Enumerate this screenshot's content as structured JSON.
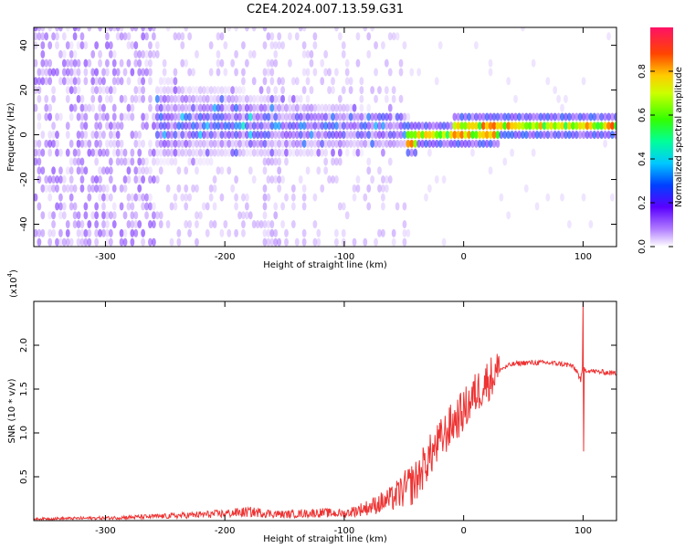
{
  "chart_data": [
    {
      "type": "heatmap",
      "title": "C2E4.2024.007.13.59.G31",
      "xlabel": "Height of straight line (km)",
      "ylabel": "Frequency (Hz)",
      "xlim": [
        -360,
        128
      ],
      "ylim": [
        -50,
        48
      ],
      "xticks": [
        -300,
        -200,
        -100,
        0,
        100
      ],
      "yticks": [
        -40,
        -20,
        0,
        20,
        40
      ],
      "colorbar": {
        "label": "Normalized spectral amplitude",
        "range": [
          0.0,
          1.0
        ],
        "ticks": [
          "0.0",
          "0.2",
          "0.4",
          "0.6",
          "0.8"
        ],
        "tick_values": [
          0.0,
          0.2,
          0.4,
          0.6,
          0.8
        ]
      },
      "ridge": {
        "description": "bright narrow band near 0 Hz for heights above about -50 km",
        "x": [
          -50,
          -30,
          -10,
          10,
          30,
          50,
          70,
          90,
          110,
          128
        ],
        "y": [
          -4,
          -2,
          -1,
          0,
          1,
          1,
          2,
          3,
          2,
          2
        ]
      }
    },
    {
      "type": "line",
      "title": "",
      "xlabel": "Height of straight line (km)",
      "ylabel": "SNR (10 * v/v)",
      "y_multiplier": "(x10",
      "y_multiplier_exp": "4",
      "y_multiplier_close": ")",
      "xlim": [
        -360,
        128
      ],
      "ylim": [
        0.0,
        2.5
      ],
      "xticks": [
        -300,
        -200,
        -100,
        0,
        100
      ],
      "yticks": [
        "0.5",
        "1.0",
        "1.5",
        "2.0"
      ],
      "ytick_values": [
        0.5,
        1.0,
        1.5,
        2.0
      ],
      "series": [
        {
          "name": "SNR",
          "color": "#ee3333",
          "x": [
            -360,
            -300,
            -250,
            -200,
            -180,
            -150,
            -120,
            -100,
            -80,
            -60,
            -50,
            -40,
            -30,
            -20,
            -10,
            0,
            10,
            20,
            30,
            40,
            50,
            60,
            70,
            80,
            90,
            95,
            98,
            100,
            102,
            110,
            128
          ],
          "y": [
            0.02,
            0.03,
            0.05,
            0.08,
            0.1,
            0.07,
            0.09,
            0.08,
            0.15,
            0.25,
            0.35,
            0.45,
            0.7,
            0.9,
            1.1,
            1.25,
            1.45,
            1.6,
            1.72,
            1.78,
            1.8,
            1.8,
            1.8,
            1.79,
            1.77,
            1.7,
            1.6,
            1.75,
            1.72,
            1.7,
            1.68
          ]
        }
      ],
      "features": {
        "spike_max": {
          "x": 100,
          "y": 2.48
        },
        "spike_min": {
          "x": 100,
          "y": 0.79
        }
      }
    }
  ],
  "colors": {
    "line": "#ee3333",
    "frame": "#000000"
  }
}
